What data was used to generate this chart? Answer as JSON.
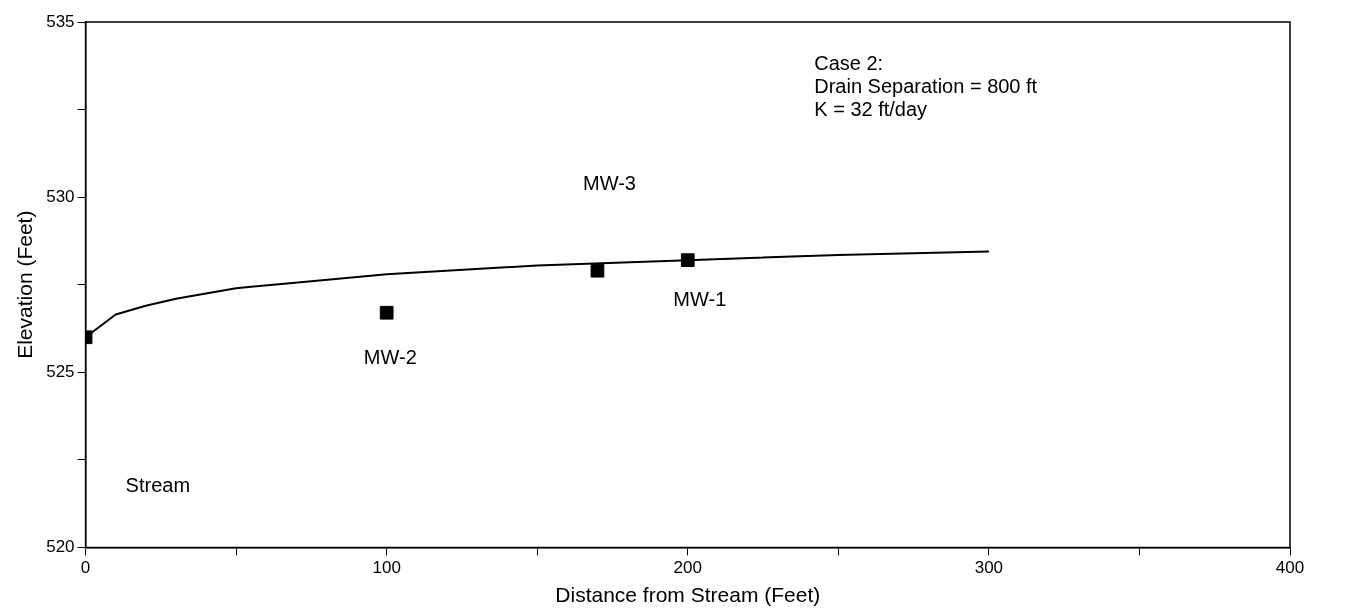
{
  "chart_data": {
    "type": "line",
    "xlabel": "Distance from Stream (Feet)",
    "ylabel": "Elevation (Feet)",
    "series": [
      {
        "type": "line",
        "color": "#000000",
        "marker": "none",
        "line_style": "solid",
        "x": [
          0,
          10,
          20,
          30,
          50,
          75,
          100,
          150,
          200,
          250,
          300
        ],
        "values": [
          526.0,
          526.65,
          526.9,
          527.1,
          527.4,
          527.6,
          527.8,
          528.05,
          528.2,
          528.35,
          528.45
        ]
      },
      {
        "type": "scatter",
        "color": "#000000",
        "marker": "square",
        "x": [
          0,
          100,
          170,
          200
        ],
        "values": [
          526.0,
          526.7,
          527.9,
          528.2
        ]
      }
    ],
    "annotations": [
      "MW-2",
      "MW-3",
      "MW-1",
      "Stream",
      "Case 2:\nDrain Separation = 800 ft\nK = 32 ft/day"
    ],
    "xlim": [
      0,
      400
    ],
    "xticks": [
      0,
      {
        "value": 50,
        "label": null
      },
      100,
      {
        "value": 150,
        "label": null
      },
      200,
      {
        "value": 250,
        "label": null
      },
      300,
      {
        "value": 350,
        "label": null
      },
      400
    ],
    "ylim": [
      520,
      535
    ],
    "yticks": [
      520,
      {
        "value": 522.5,
        "label": null
      },
      525,
      {
        "value": 527.5,
        "label": null
      },
      530,
      {
        "value": 532.5,
        "label": null
      },
      535
    ],
    "grid": false,
    "legend": false
  }
}
